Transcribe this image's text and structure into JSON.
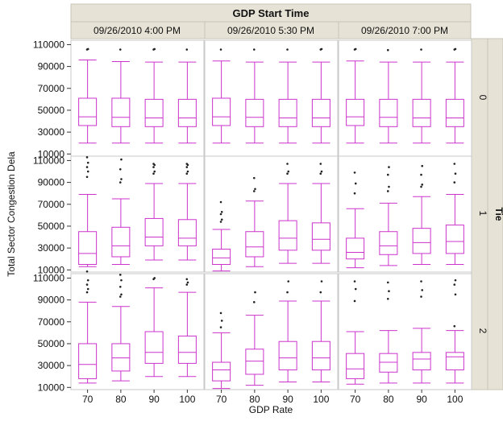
{
  "chart_data": {
    "type": "box",
    "title": "GDP Start Time",
    "xlabel": "GDP Rate",
    "ylabel": "Total Sector Congestion Dela",
    "row_facet_label": "Tie",
    "column_groups": [
      "09/26/2010 4:00 PM",
      "09/26/2010 5:30 PM",
      "09/26/2010 7:00 PM"
    ],
    "row_groups": [
      "0",
      "1",
      "2"
    ],
    "categories": [
      "70",
      "80",
      "90",
      "100"
    ],
    "y_ticks": [
      "110000",
      "90000",
      "70000",
      "50000",
      "30000",
      "10000"
    ],
    "ylim": [
      8000,
      114000
    ],
    "grid": false,
    "colors": {
      "box": "#cc33cc",
      "outlier": "#222222",
      "strip": "#e6e3d6",
      "strip_border": "#c8c4b4",
      "panel_border": "#c8c8c8"
    },
    "panels": [
      {
        "row": "0",
        "column": "09/26/2010 4:00 PM",
        "boxes": [
          {
            "x": "70",
            "min": 20000,
            "q1": 36000,
            "median": 44000,
            "q3": 61000,
            "max": 96000,
            "outliers": [
              105500,
              106000
            ]
          },
          {
            "x": "80",
            "min": 20000,
            "q1": 35000,
            "median": 43500,
            "q3": 61000,
            "max": 94500,
            "outliers": [
              105500
            ]
          },
          {
            "x": "90",
            "min": 20000,
            "q1": 35000,
            "median": 43000,
            "q3": 60000,
            "max": 94000,
            "outliers": [
              105500,
              106000
            ]
          },
          {
            "x": "100",
            "min": 20000,
            "q1": 35000,
            "median": 43000,
            "q3": 60000,
            "max": 94000,
            "outliers": [
              105500
            ]
          }
        ]
      },
      {
        "row": "0",
        "column": "09/26/2010 5:30 PM",
        "boxes": [
          {
            "x": "70",
            "min": 20000,
            "q1": 36000,
            "median": 44000,
            "q3": 61000,
            "max": 95000,
            "outliers": [
              105500
            ]
          },
          {
            "x": "80",
            "min": 20000,
            "q1": 35000,
            "median": 43500,
            "q3": 60000,
            "max": 94000,
            "outliers": [
              105500
            ]
          },
          {
            "x": "90",
            "min": 20000,
            "q1": 35000,
            "median": 43000,
            "q3": 60000,
            "max": 94000,
            "outliers": [
              105500
            ]
          },
          {
            "x": "100",
            "min": 20000,
            "q1": 35000,
            "median": 43000,
            "q3": 60000,
            "max": 94000,
            "outliers": [
              105500,
              106000
            ]
          }
        ]
      },
      {
        "row": "0",
        "column": "09/26/2010 7:00 PM",
        "boxes": [
          {
            "x": "70",
            "min": 20000,
            "q1": 36000,
            "median": 44000,
            "q3": 60000,
            "max": 95000,
            "outliers": [
              105500,
              106000
            ]
          },
          {
            "x": "80",
            "min": 20000,
            "q1": 35000,
            "median": 43500,
            "q3": 60000,
            "max": 94000,
            "outliers": [
              105000
            ]
          },
          {
            "x": "90",
            "min": 20000,
            "q1": 35000,
            "median": 43000,
            "q3": 60000,
            "max": 94000,
            "outliers": [
              105500
            ]
          },
          {
            "x": "100",
            "min": 20000,
            "q1": 35000,
            "median": 43000,
            "q3": 60000,
            "max": 94000,
            "outliers": [
              105500,
              106000
            ]
          }
        ]
      },
      {
        "row": "1",
        "column": "09/26/2010 4:00 PM",
        "boxes": [
          {
            "x": "70",
            "min": 13000,
            "q1": 15000,
            "median": 25000,
            "q3": 45000,
            "max": 79000,
            "outliers": [
              95000,
              100000,
              104000,
              108000,
              113000
            ]
          },
          {
            "x": "80",
            "min": 15000,
            "q1": 22000,
            "median": 32000,
            "q3": 49000,
            "max": 75000,
            "outliers": [
              90000,
              93000,
              102000,
              111000
            ]
          },
          {
            "x": "90",
            "min": 19000,
            "q1": 32000,
            "median": 40000,
            "q3": 57000,
            "max": 89000,
            "outliers": [
              98000,
              100000,
              104000,
              106000,
              107000
            ]
          },
          {
            "x": "100",
            "min": 19000,
            "q1": 32000,
            "median": 39000,
            "q3": 56000,
            "max": 89000,
            "outliers": [
              98000,
              100000,
              104000,
              106000,
              107000
            ]
          }
        ]
      },
      {
        "row": "1",
        "column": "09/26/2010 5:30 PM",
        "boxes": [
          {
            "x": "70",
            "min": 9000,
            "q1": 15000,
            "median": 21000,
            "q3": 29000,
            "max": 47000,
            "outliers": [
              54000,
              56000,
              61000,
              63000,
              72000
            ]
          },
          {
            "x": "80",
            "min": 13000,
            "q1": 22000,
            "median": 31000,
            "q3": 45000,
            "max": 73000,
            "outliers": [
              82000,
              84000,
              94000
            ]
          },
          {
            "x": "90",
            "min": 16000,
            "q1": 28000,
            "median": 39000,
            "q3": 55000,
            "max": 89000,
            "outliers": [
              98000,
              100000,
              107000
            ]
          },
          {
            "x": "100",
            "min": 16000,
            "q1": 28000,
            "median": 38000,
            "q3": 53000,
            "max": 89000,
            "outliers": [
              98000,
              100000,
              107000
            ]
          }
        ]
      },
      {
        "row": "1",
        "column": "09/26/2010 7:00 PM",
        "boxes": [
          {
            "x": "70",
            "min": 12000,
            "q1": 20000,
            "median": 26000,
            "q3": 39000,
            "max": 66000,
            "outliers": [
              80000,
              89000,
              99000
            ]
          },
          {
            "x": "80",
            "min": 14000,
            "q1": 24000,
            "median": 32000,
            "q3": 45000,
            "max": 71000,
            "outliers": [
              82000,
              86000,
              97000,
              104000
            ]
          },
          {
            "x": "90",
            "min": 15000,
            "q1": 25000,
            "median": 35000,
            "q3": 48000,
            "max": 77000,
            "outliers": [
              86000,
              88000,
              97000,
              105000
            ]
          },
          {
            "x": "100",
            "min": 15000,
            "q1": 25000,
            "median": 36000,
            "q3": 51000,
            "max": 79000,
            "outliers": [
              90000,
              98000,
              107000
            ]
          }
        ]
      },
      {
        "row": "2",
        "column": "09/26/2010 4:00 PM",
        "boxes": [
          {
            "x": "70",
            "min": 14000,
            "q1": 18000,
            "median": 31000,
            "q3": 50000,
            "max": 88000,
            "outliers": [
              97000,
              100000,
              104000,
              108000,
              116000
            ]
          },
          {
            "x": "80",
            "min": 16000,
            "q1": 25000,
            "median": 37000,
            "q3": 50000,
            "max": 84000,
            "outliers": [
              93000,
              95000,
              102000,
              108000,
              113000
            ]
          },
          {
            "x": "90",
            "min": 20000,
            "q1": 32000,
            "median": 42000,
            "q3": 61000,
            "max": 101000,
            "outliers": [
              109000,
              110000
            ]
          },
          {
            "x": "100",
            "min": 20000,
            "q1": 32000,
            "median": 42000,
            "q3": 57000,
            "max": 97000,
            "outliers": [
              104000,
              106000,
              109000
            ]
          }
        ]
      },
      {
        "row": "2",
        "column": "09/26/2010 5:30 PM",
        "boxes": [
          {
            "x": "70",
            "min": 9000,
            "q1": 16000,
            "median": 26000,
            "q3": 33000,
            "max": 60000,
            "outliers": [
              65000,
              71000,
              78000
            ]
          },
          {
            "x": "80",
            "min": 12000,
            "q1": 22000,
            "median": 34000,
            "q3": 45000,
            "max": 76000,
            "outliers": [
              88000,
              97000
            ]
          },
          {
            "x": "90",
            "min": 15000,
            "q1": 26000,
            "median": 37000,
            "q3": 52000,
            "max": 89000,
            "outliers": [
              97000,
              107000
            ]
          },
          {
            "x": "100",
            "min": 15000,
            "q1": 26000,
            "median": 37000,
            "q3": 52000,
            "max": 89000,
            "outliers": [
              97000,
              107000
            ]
          }
        ]
      },
      {
        "row": "2",
        "column": "09/26/2010 7:00 PM",
        "boxes": [
          {
            "x": "70",
            "min": 13000,
            "q1": 18000,
            "median": 27000,
            "q3": 41000,
            "max": 61000,
            "outliers": [
              89000,
              100000,
              107000
            ]
          },
          {
            "x": "80",
            "min": 14000,
            "q1": 24000,
            "median": 33000,
            "q3": 41000,
            "max": 62000,
            "outliers": [
              91000,
              98000,
              106000
            ]
          },
          {
            "x": "90",
            "min": 14000,
            "q1": 26000,
            "median": 36000,
            "q3": 42000,
            "max": 64000,
            "outliers": [
              93000,
              99000,
              107000
            ]
          },
          {
            "x": "100",
            "min": 14000,
            "q1": 26000,
            "median": 38000,
            "q3": 42000,
            "max": 62000,
            "outliers": [
              66000,
              95000,
              104000,
              108000
            ]
          }
        ]
      }
    ]
  }
}
